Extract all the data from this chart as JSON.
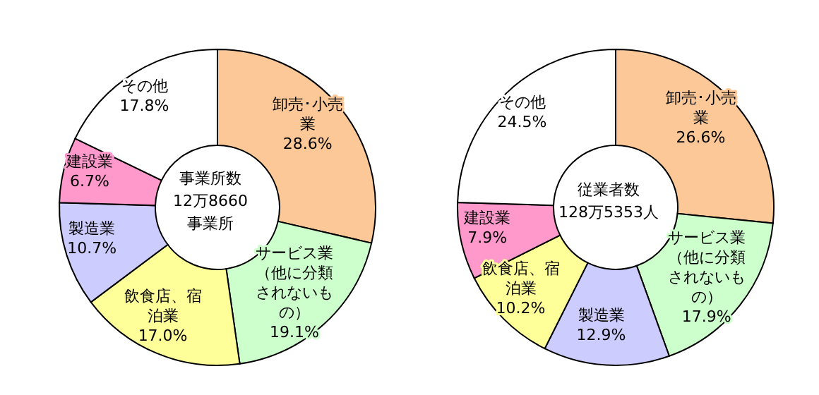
{
  "chart_data": [
    {
      "type": "donut",
      "categories": [
        "卸売･小売業",
        "サービス業（他に分類されないもの）",
        "飲食店、宿泊業",
        "製造業",
        "建設業",
        "その他"
      ],
      "values": [
        28.6,
        19.1,
        17.0,
        10.7,
        6.7,
        17.8
      ],
      "value_labels": [
        "28.6%",
        "19.1%",
        "17.0%",
        "10.7%",
        "6.7%",
        "17.8%"
      ],
      "colors": [
        "#fcc897",
        "#ccffcc",
        "#ffff99",
        "#ccccff",
        "#ff99cc",
        "#ffffff"
      ],
      "annotations": [
        "事業所数",
        "12万8660",
        "事業所"
      ],
      "legend": false
    },
    {
      "type": "donut",
      "categories": [
        "卸売･小売業",
        "サービス業（他に分類されないもの）",
        "製造業",
        "飲食店、宿泊業",
        "建設業",
        "その他"
      ],
      "values": [
        26.6,
        17.9,
        12.9,
        10.2,
        7.9,
        24.5
      ],
      "value_labels": [
        "26.6%",
        "17.9%",
        "12.9%",
        "10.2%",
        "7.9%",
        "24.5%"
      ],
      "colors": [
        "#fcc897",
        "#ccffcc",
        "#ccccff",
        "#ffff99",
        "#ff99cc",
        "#ffffff"
      ],
      "annotations": [
        "従業者数",
        "128万5353人"
      ],
      "legend": false
    }
  ]
}
